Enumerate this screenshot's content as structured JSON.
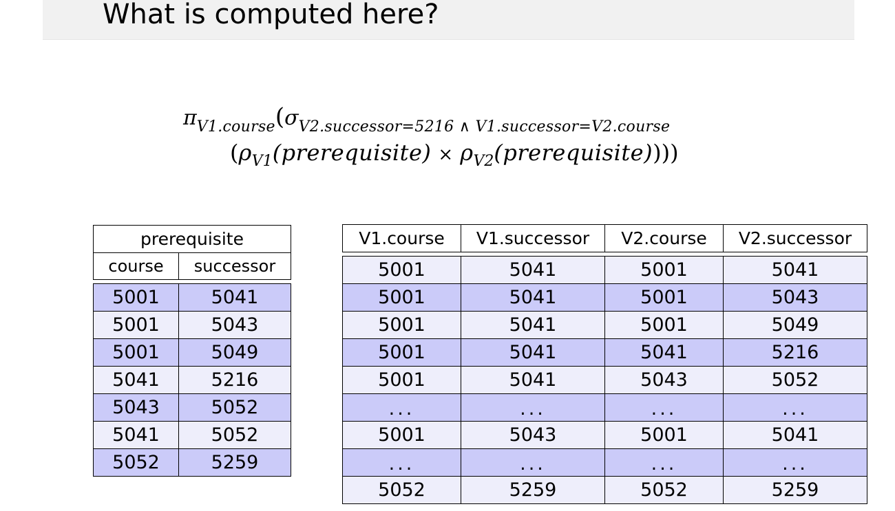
{
  "slide": {
    "title": "What is computed here?"
  },
  "formula": {
    "pi": "π",
    "pi_sub": "V1.course",
    "open1": "(",
    "sigma": "σ",
    "sigma_sub": "V2.successor=5216 ∧ V1.successor=V2.course",
    "open2": "(",
    "rho1": "ρ",
    "rho1_sub": "V1",
    "rel1": "(prerequisite)",
    "times": "×",
    "rho2": "ρ",
    "rho2_sub": "V2",
    "rel2": "(prerequisite)",
    "close": ")))"
  },
  "prerequisite_table": {
    "title": "prerequisite",
    "columns": [
      "course",
      "successor"
    ],
    "rows": [
      [
        "5001",
        "5041"
      ],
      [
        "5001",
        "5043"
      ],
      [
        "5001",
        "5049"
      ],
      [
        "5041",
        "5216"
      ],
      [
        "5043",
        "5052"
      ],
      [
        "5041",
        "5052"
      ],
      [
        "5052",
        "5259"
      ]
    ]
  },
  "cross_table": {
    "columns": [
      "V1.course",
      "V1.successor",
      "V2.course",
      "V2.successor"
    ],
    "rows": [
      [
        "5001",
        "5041",
        "5001",
        "5041"
      ],
      [
        "5001",
        "5041",
        "5001",
        "5043"
      ],
      [
        "5001",
        "5041",
        "5001",
        "5049"
      ],
      [
        "5001",
        "5041",
        "5041",
        "5216"
      ],
      [
        "5001",
        "5041",
        "5043",
        "5052"
      ],
      [
        "...",
        "...",
        "...",
        "..."
      ],
      [
        "5001",
        "5043",
        "5001",
        "5041"
      ],
      [
        "...",
        "...",
        "...",
        "..."
      ],
      [
        "5052",
        "5259",
        "5052",
        "5259"
      ]
    ]
  },
  "colors": {
    "row_light": "#eeeefb",
    "row_dark": "#cbcbf9",
    "title_bar": "#f1f1f1"
  }
}
